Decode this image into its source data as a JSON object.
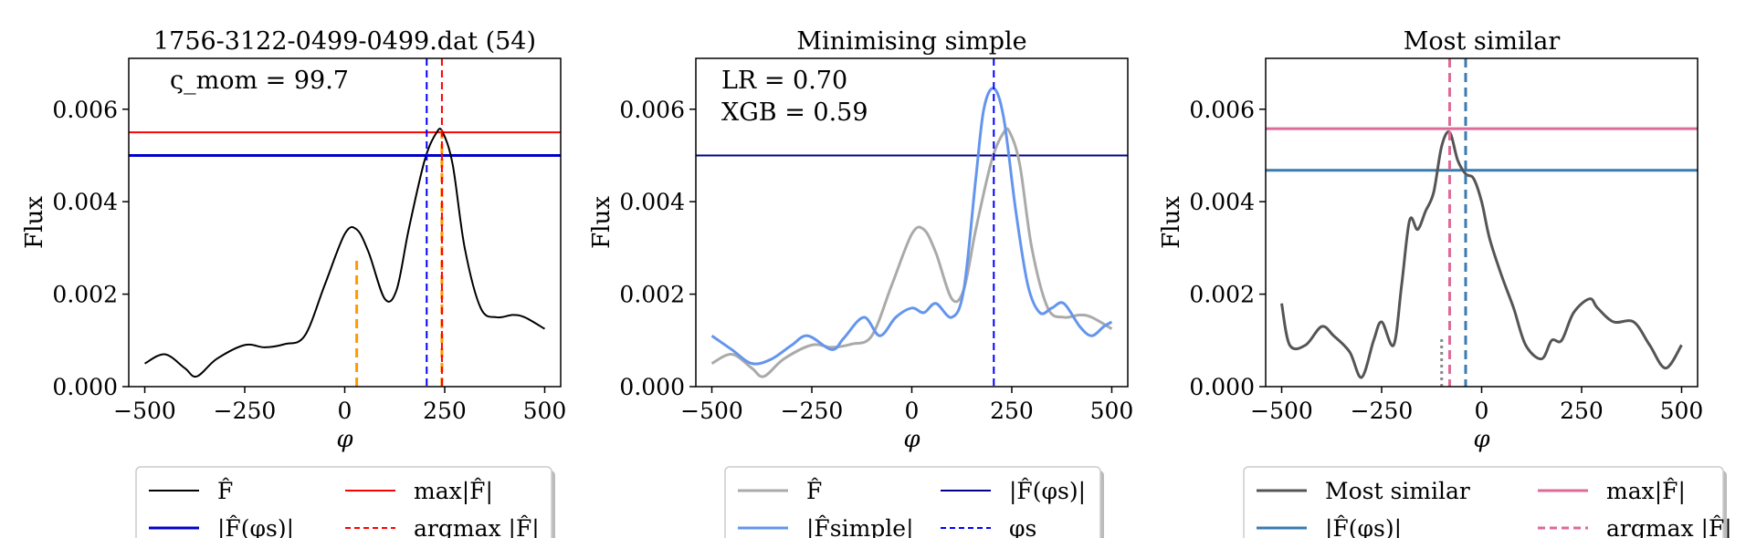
{
  "chart_data": [
    {
      "type": "line",
      "title": "1756-3122-0499-0499.dat (54)",
      "xlabel": "φ",
      "ylabel": "Flux",
      "xlim": [
        -540,
        540
      ],
      "ylim": [
        0,
        0.0071
      ],
      "xticks": [
        {
          "v": -500,
          "label": "−500"
        },
        {
          "v": -250,
          "label": "−250"
        },
        {
          "v": 0,
          "label": "0"
        },
        {
          "v": 250,
          "label": "250"
        },
        {
          "v": 500,
          "label": "500"
        }
      ],
      "yticks": [
        {
          "v": 0,
          "label": "0.000"
        },
        {
          "v": 0.002,
          "label": "0.002"
        },
        {
          "v": 0.004,
          "label": "0.004"
        },
        {
          "v": 0.006,
          "label": "0.006"
        }
      ],
      "annotations": [
        "ς_mom = 99.7"
      ],
      "series": [
        {
          "name": "F̂",
          "color": "#000000",
          "width": 2,
          "x": [
            -500,
            -450,
            -400,
            -370,
            -320,
            -250,
            -200,
            -150,
            -100,
            -50,
            0,
            30,
            60,
            100,
            130,
            160,
            200,
            230,
            245,
            270,
            300,
            340,
            380,
            420,
            450,
            500
          ],
          "y": [
            0.0005,
            0.0007,
            0.0004,
            0.00022,
            0.0006,
            0.0009,
            0.00085,
            0.00092,
            0.0011,
            0.0022,
            0.0033,
            0.0034,
            0.0029,
            0.0019,
            0.0021,
            0.0034,
            0.0049,
            0.0055,
            0.0055,
            0.0048,
            0.003,
            0.0017,
            0.0015,
            0.00155,
            0.0015,
            0.00125
          ]
        }
      ],
      "hlines": [
        {
          "name": "max|F̂|",
          "y": 0.0055,
          "color": "#ff0000",
          "width": 2,
          "dash": ""
        },
        {
          "name": "|F̂(φ_s)|",
          "y": 0.005,
          "color": "#0000cc",
          "width": 3,
          "dash": ""
        }
      ],
      "vlines": [
        {
          "name": "φ_s",
          "x": 205,
          "color": "#0000ff",
          "width": 2,
          "dash": "8,5"
        },
        {
          "name": "argmax |F̂|",
          "x": 243,
          "color": "#ff0000",
          "width": 2,
          "dash": "8,5"
        }
      ],
      "segments": [
        {
          "x": 30,
          "y0": 0,
          "y1": 0.0028,
          "color": "#ff9900",
          "width": 3,
          "dash": "10,6"
        },
        {
          "x": 243,
          "y0": 0,
          "y1": 0.0055,
          "color": "#ff9900",
          "width": 3,
          "dash": "10,6"
        }
      ],
      "legend": [
        {
          "label": "F̂",
          "color": "#000000",
          "dash": "",
          "width": 2
        },
        {
          "label": "max|F̂|",
          "color": "#ff0000",
          "dash": "",
          "width": 2
        },
        {
          "label": "|F̂(φs)|",
          "color": "#0000cc",
          "dash": "",
          "width": 3
        },
        {
          "label": "argmax |F̂|",
          "color": "#ff0000",
          "dash": "6,4",
          "width": 2
        }
      ]
    },
    {
      "type": "line",
      "title": "Minimising simple",
      "xlabel": "φ",
      "ylabel": "Flux",
      "xlim": [
        -540,
        540
      ],
      "ylim": [
        0,
        0.0071
      ],
      "xticks": [
        {
          "v": -500,
          "label": "−500"
        },
        {
          "v": -250,
          "label": "−250"
        },
        {
          "v": 0,
          "label": "0"
        },
        {
          "v": 250,
          "label": "250"
        },
        {
          "v": 500,
          "label": "500"
        }
      ],
      "yticks": [
        {
          "v": 0,
          "label": "0.000"
        },
        {
          "v": 0.002,
          "label": "0.002"
        },
        {
          "v": 0.004,
          "label": "0.004"
        },
        {
          "v": 0.006,
          "label": "0.006"
        }
      ],
      "annotations": [
        "LR = 0.70",
        "XGB = 0.59"
      ],
      "series": [
        {
          "name": "F̂",
          "color": "#aaaaaa",
          "width": 3,
          "x": [
            -500,
            -450,
            -400,
            -370,
            -320,
            -250,
            -200,
            -150,
            -100,
            -50,
            0,
            30,
            60,
            100,
            130,
            160,
            200,
            230,
            245,
            270,
            300,
            340,
            380,
            420,
            450,
            500
          ],
          "y": [
            0.0005,
            0.0007,
            0.0004,
            0.00022,
            0.0006,
            0.0009,
            0.00085,
            0.00092,
            0.0011,
            0.0022,
            0.0033,
            0.0034,
            0.0029,
            0.0019,
            0.0021,
            0.0034,
            0.0049,
            0.0055,
            0.0055,
            0.0048,
            0.003,
            0.0017,
            0.0015,
            0.00155,
            0.0015,
            0.00125
          ]
        },
        {
          "name": "|F̂simple|",
          "color": "#6495ed",
          "width": 3,
          "x": [
            -500,
            -450,
            -400,
            -350,
            -300,
            -260,
            -200,
            -170,
            -120,
            -80,
            -40,
            0,
            30,
            60,
            100,
            130,
            160,
            180,
            205,
            230,
            260,
            290,
            320,
            350,
            380,
            420,
            450,
            480,
            500
          ],
          "y": [
            0.0011,
            0.0008,
            0.0005,
            0.0006,
            0.0009,
            0.0011,
            0.0008,
            0.00105,
            0.0015,
            0.0011,
            0.0015,
            0.0017,
            0.0016,
            0.0018,
            0.0015,
            0.0021,
            0.0045,
            0.006,
            0.00645,
            0.0058,
            0.0038,
            0.0022,
            0.0016,
            0.0017,
            0.0018,
            0.0013,
            0.0011,
            0.0013,
            0.0014
          ]
        }
      ],
      "hlines": [
        {
          "name": "|F̂(φs)|",
          "y": 0.005,
          "color": "#00008b",
          "width": 2,
          "dash": ""
        }
      ],
      "vlines": [
        {
          "name": "φs",
          "x": 205,
          "color": "#0000ff",
          "width": 2,
          "dash": "8,5"
        }
      ],
      "segments": [],
      "legend": [
        {
          "label": "F̂",
          "color": "#aaaaaa",
          "dash": "",
          "width": 3
        },
        {
          "label": "|F̂(φs)|",
          "color": "#00008b",
          "dash": "",
          "width": 2
        },
        {
          "label": "|F̂simple|",
          "color": "#6495ed",
          "dash": "",
          "width": 3
        },
        {
          "label": "φs",
          "color": "#0000ff",
          "dash": "6,4",
          "width": 2
        }
      ]
    },
    {
      "type": "line",
      "title": "Most similar",
      "xlabel": "φ",
      "ylabel": "Flux",
      "xlim": [
        -540,
        540
      ],
      "ylim": [
        0,
        0.0071
      ],
      "xticks": [
        {
          "v": -500,
          "label": "−500"
        },
        {
          "v": -250,
          "label": "−250"
        },
        {
          "v": 0,
          "label": "0"
        },
        {
          "v": 250,
          "label": "250"
        },
        {
          "v": 500,
          "label": "500"
        }
      ],
      "yticks": [
        {
          "v": 0,
          "label": "0.000"
        },
        {
          "v": 0.002,
          "label": "0.002"
        },
        {
          "v": 0.004,
          "label": "0.004"
        },
        {
          "v": 0.006,
          "label": "0.006"
        }
      ],
      "annotations": [],
      "series": [
        {
          "name": "Most similar",
          "color": "#555555",
          "width": 3,
          "x": [
            -500,
            -480,
            -440,
            -400,
            -370,
            -330,
            -300,
            -270,
            -250,
            -220,
            -200,
            -180,
            -160,
            -140,
            -120,
            -100,
            -80,
            -60,
            -40,
            -20,
            0,
            20,
            50,
            80,
            110,
            150,
            175,
            200,
            230,
            270,
            290,
            330,
            380,
            420,
            460,
            500
          ],
          "y": [
            0.0018,
            0.0009,
            0.0009,
            0.0013,
            0.0011,
            0.00075,
            0.0002,
            0.001,
            0.0014,
            0.0009,
            0.0022,
            0.0036,
            0.0034,
            0.0038,
            0.0042,
            0.0052,
            0.0055,
            0.0049,
            0.0046,
            0.0045,
            0.004,
            0.0032,
            0.0024,
            0.0017,
            0.0009,
            0.0006,
            0.001,
            0.001,
            0.0016,
            0.0019,
            0.0017,
            0.0014,
            0.0014,
            0.0009,
            0.0004,
            0.0009
          ]
        }
      ],
      "hlines": [
        {
          "name": "max|F̂|",
          "y": 0.00558,
          "color": "#dd6a99",
          "width": 3,
          "dash": ""
        },
        {
          "name": "|F̂(φs)|",
          "y": 0.00468,
          "color": "#3a7bb0",
          "width": 3,
          "dash": ""
        }
      ],
      "vlines": [
        {
          "name": "argmax |F̂|",
          "x": -80,
          "color": "#dd6a99",
          "width": 3,
          "dash": "10,6"
        },
        {
          "name": "φs",
          "x": -40,
          "color": "#3a7bb0",
          "width": 3,
          "dash": "10,6"
        }
      ],
      "segments": [
        {
          "x": -100,
          "y0": 0,
          "y1": 0.0011,
          "color": "#888888",
          "width": 3,
          "dash": "3,4"
        }
      ],
      "legend": [
        {
          "label": "Most similar",
          "color": "#555555",
          "dash": "",
          "width": 3
        },
        {
          "label": "max|F̂|",
          "color": "#dd6a99",
          "dash": "",
          "width": 3
        },
        {
          "label": "|F̂(φs)|",
          "color": "#3a7bb0",
          "dash": "",
          "width": 3
        },
        {
          "label": "argmax |F̂|",
          "color": "#dd6a99",
          "dash": "8,5",
          "width": 3
        }
      ]
    }
  ]
}
